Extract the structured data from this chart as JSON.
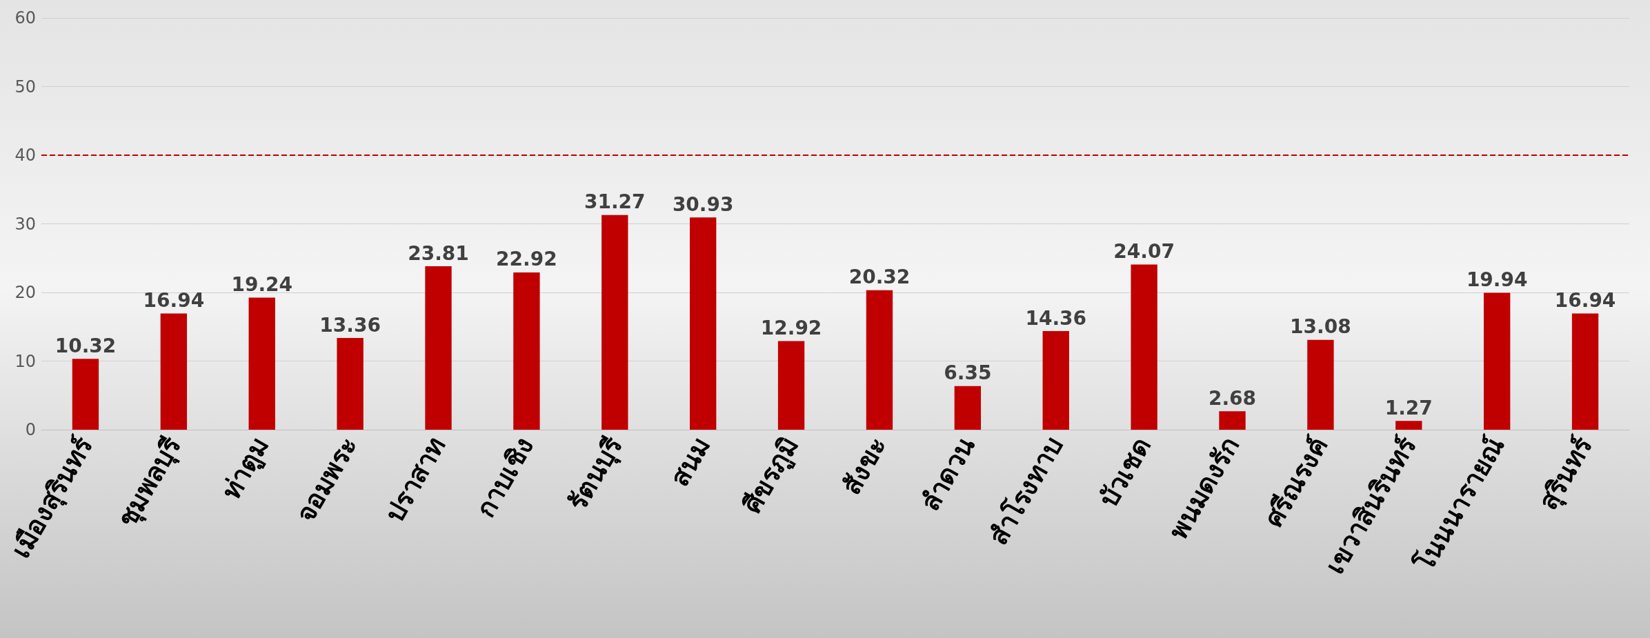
{
  "chart_data": {
    "type": "bar",
    "categories": [
      "เมืองสุรินทร์",
      "ชุมพลบุรี",
      "ท่าตูม",
      "จอมพระ",
      "ปราสาท",
      "กาบเชิง",
      "รัตนบุรี",
      "สนม",
      "ศีขรภูมิ",
      "สังขะ",
      "ลำดวน",
      "สำโรงทาบ",
      "บัวเชด",
      "พนมดงรัก",
      "ศรีณรงค์",
      "เขวาสินรินทร์",
      "โนนนารายณ์",
      "สุรินทร์"
    ],
    "values": [
      10.32,
      16.94,
      19.24,
      13.36,
      23.81,
      22.92,
      31.27,
      30.93,
      12.92,
      20.32,
      6.35,
      14.36,
      24.07,
      2.68,
      13.08,
      1.27,
      19.94,
      16.94
    ],
    "color": "#c00000",
    "ylim": [
      0,
      60
    ],
    "yticks": [
      0,
      10,
      20,
      30,
      40,
      50,
      60
    ],
    "grid": "y",
    "data_labels": true,
    "ref_lines": [
      {
        "axis": "y",
        "value": 40,
        "color": "#c00000",
        "line_style": "dashed"
      }
    ]
  }
}
